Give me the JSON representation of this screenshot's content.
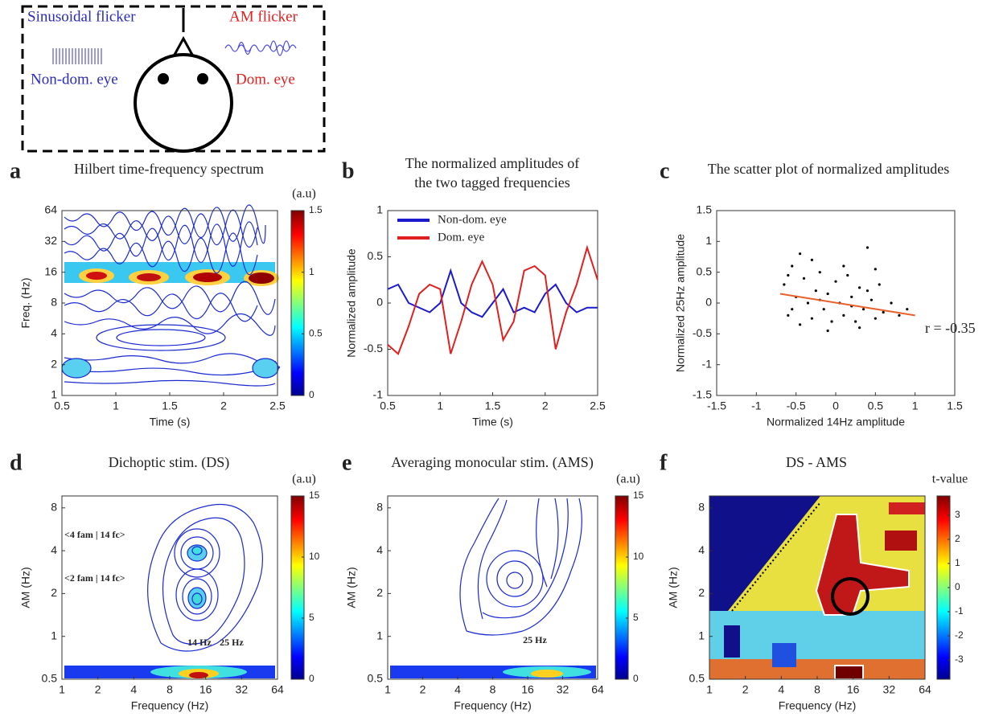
{
  "diagram": {
    "left_title": "Sinusoidal flicker",
    "left_label": "Non-dom. eye",
    "right_title": "AM flicker",
    "right_label": "Dom. eye"
  },
  "chart_data": [
    {
      "type": "contour",
      "panel_label": "a",
      "title": [
        "Hilbert time-frequency spectrum"
      ],
      "xlabel": "Time (s)",
      "ylabel": "Freq. (Hz)",
      "xlim": [
        0.5,
        2.5
      ],
      "ylim": [
        1,
        64
      ],
      "xticks": [
        0.5,
        1,
        1.5,
        2,
        2.5
      ],
      "yticks": [
        1,
        2,
        4,
        8,
        16,
        32,
        64
      ],
      "log_y": true,
      "colorbar": {
        "label": "(a.u)",
        "lim": [
          0,
          1.5
        ],
        "ticks": [
          0,
          0.5,
          1,
          1.5
        ]
      }
    },
    {
      "type": "line",
      "panel_label": "b",
      "title": [
        "The normalized amplitudes of",
        "the two tagged frequencies"
      ],
      "xlabel": "Time (s)",
      "ylabel": "Normalized amplitude",
      "xlim": [
        0.5,
        2.5
      ],
      "ylim": [
        -1,
        1
      ],
      "xticks": [
        0.5,
        1,
        1.5,
        2,
        2.5
      ],
      "yticks": [
        -1,
        -0.5,
        0,
        0.5,
        1
      ],
      "x": [
        0.5,
        0.6,
        0.7,
        0.8,
        0.9,
        1.0,
        1.1,
        1.2,
        1.3,
        1.4,
        1.5,
        1.6,
        1.7,
        1.8,
        1.9,
        2.0,
        2.1,
        2.2,
        2.3,
        2.4,
        2.5
      ],
      "series": [
        {
          "name": "Non-dom. eye",
          "color": "#1a1acc",
          "values": [
            0.15,
            0.2,
            0,
            -0.05,
            -0.1,
            0,
            0.35,
            0,
            -0.1,
            -0.15,
            0,
            0.15,
            -0.1,
            -0.05,
            -0.1,
            0.1,
            0.2,
            0,
            -0.1,
            -0.05,
            -0.05
          ]
        },
        {
          "name": "Dom. eye",
          "color": "#e02020",
          "values": [
            -0.45,
            -0.55,
            -0.25,
            0.1,
            0.2,
            0.15,
            -0.55,
            -0.2,
            0.2,
            0.45,
            0.2,
            -0.4,
            -0.2,
            0.35,
            0.4,
            0.3,
            -0.5,
            -0.1,
            0.2,
            0.6,
            0.25
          ]
        }
      ]
    },
    {
      "type": "scatter",
      "panel_label": "c",
      "title": [
        "The scatter plot of normalized amplitudes"
      ],
      "xlabel": "Normalized 14Hz amplitude",
      "ylabel": "Normalized 25Hz amplitude",
      "xlim": [
        -1.5,
        1.5
      ],
      "ylim": [
        -1.5,
        1.5
      ],
      "xticks": [
        -1.5,
        -1,
        -0.5,
        0,
        0.5,
        1,
        1.5
      ],
      "yticks": [
        -1.5,
        -1,
        -0.5,
        0,
        0.5,
        1,
        1.5
      ],
      "x": [
        -0.65,
        -0.6,
        -0.55,
        -0.5,
        -0.45,
        -0.4,
        -0.35,
        -0.3,
        -0.25,
        -0.2,
        -0.15,
        -0.1,
        -0.05,
        0,
        0.05,
        0.1,
        0.15,
        0.2,
        0.25,
        0.3,
        0.35,
        0.4,
        0.45,
        0.5,
        0.55,
        0.6,
        0.7,
        0.8,
        0.9,
        -0.45,
        -0.3,
        -0.1,
        0.1,
        0.3,
        0.5,
        -0.55,
        -0.2,
        0.2,
        0.4,
        -0.6
      ],
      "y": [
        0.3,
        -0.2,
        0.6,
        0.1,
        -0.35,
        0.4,
        0,
        -0.25,
        0.2,
        0.5,
        -0.1,
        0.15,
        -0.3,
        0.35,
        0,
        -0.2,
        0.45,
        0.1,
        -0.3,
        0.25,
        -0.1,
        0.9,
        0.05,
        -0.25,
        0.3,
        -0.15,
        0,
        -0.2,
        -0.1,
        0.8,
        0.7,
        -0.45,
        0.6,
        -0.4,
        0.55,
        -0.1,
        0.05,
        -0.05,
        0.2,
        0.45
      ],
      "fit": {
        "x": [
          -0.7,
          1
        ],
        "y": [
          0.15,
          -0.2
        ],
        "color": "#e8602c"
      },
      "annotations": [
        "r = -0.35"
      ]
    },
    {
      "type": "contour",
      "panel_label": "d",
      "title": [
        "Dichoptic stim. (DS)"
      ],
      "xlabel": "Frequency (Hz)",
      "ylabel": "AM (Hz)",
      "xlim": [
        1,
        64
      ],
      "ylim": [
        0.5,
        9.7
      ],
      "xticks": [
        1,
        2,
        4,
        8,
        16,
        32,
        64
      ],
      "yticks": [
        0.5,
        1,
        2,
        4,
        8
      ],
      "log_x": true,
      "log_y": true,
      "colorbar": {
        "label": "(a.u)",
        "lim": [
          0,
          15
        ],
        "ticks": [
          0,
          5,
          10,
          15
        ]
      },
      "annotations": [
        "<4 fam | 14 fc>",
        "<2 fam | 14 fc>",
        "14 Hz",
        "25 Hz"
      ]
    },
    {
      "type": "contour",
      "panel_label": "e",
      "title": [
        "Averaging monocular stim. (AMS)"
      ],
      "xlabel": "Frequency (Hz)",
      "ylabel": "AM (Hz)",
      "xlim": [
        1,
        64
      ],
      "ylim": [
        0.5,
        9.7
      ],
      "xticks": [
        1,
        2,
        4,
        8,
        16,
        32,
        64
      ],
      "yticks": [
        0.5,
        1,
        2,
        4,
        8
      ],
      "log_x": true,
      "log_y": true,
      "colorbar": {
        "label": "(a.u)",
        "lim": [
          0,
          15
        ],
        "ticks": [
          0,
          5,
          10,
          15
        ]
      },
      "annotations": [
        "25 Hz"
      ]
    },
    {
      "type": "heatmap",
      "panel_label": "f",
      "title": [
        "DS - AMS"
      ],
      "xlabel": "Frequency (Hz)",
      "ylabel": "AM (Hz)",
      "xlim": [
        1,
        64
      ],
      "ylim": [
        0.5,
        9.7
      ],
      "xticks": [
        1,
        2,
        4,
        8,
        16,
        32,
        64
      ],
      "yticks": [
        0.5,
        1,
        2,
        4,
        8
      ],
      "log_x": true,
      "log_y": true,
      "colorbar": {
        "label": "t-value",
        "lim": [
          -3.8,
          3.8
        ],
        "ticks": [
          -3,
          -2,
          -1,
          0,
          1,
          2,
          3
        ]
      }
    }
  ]
}
